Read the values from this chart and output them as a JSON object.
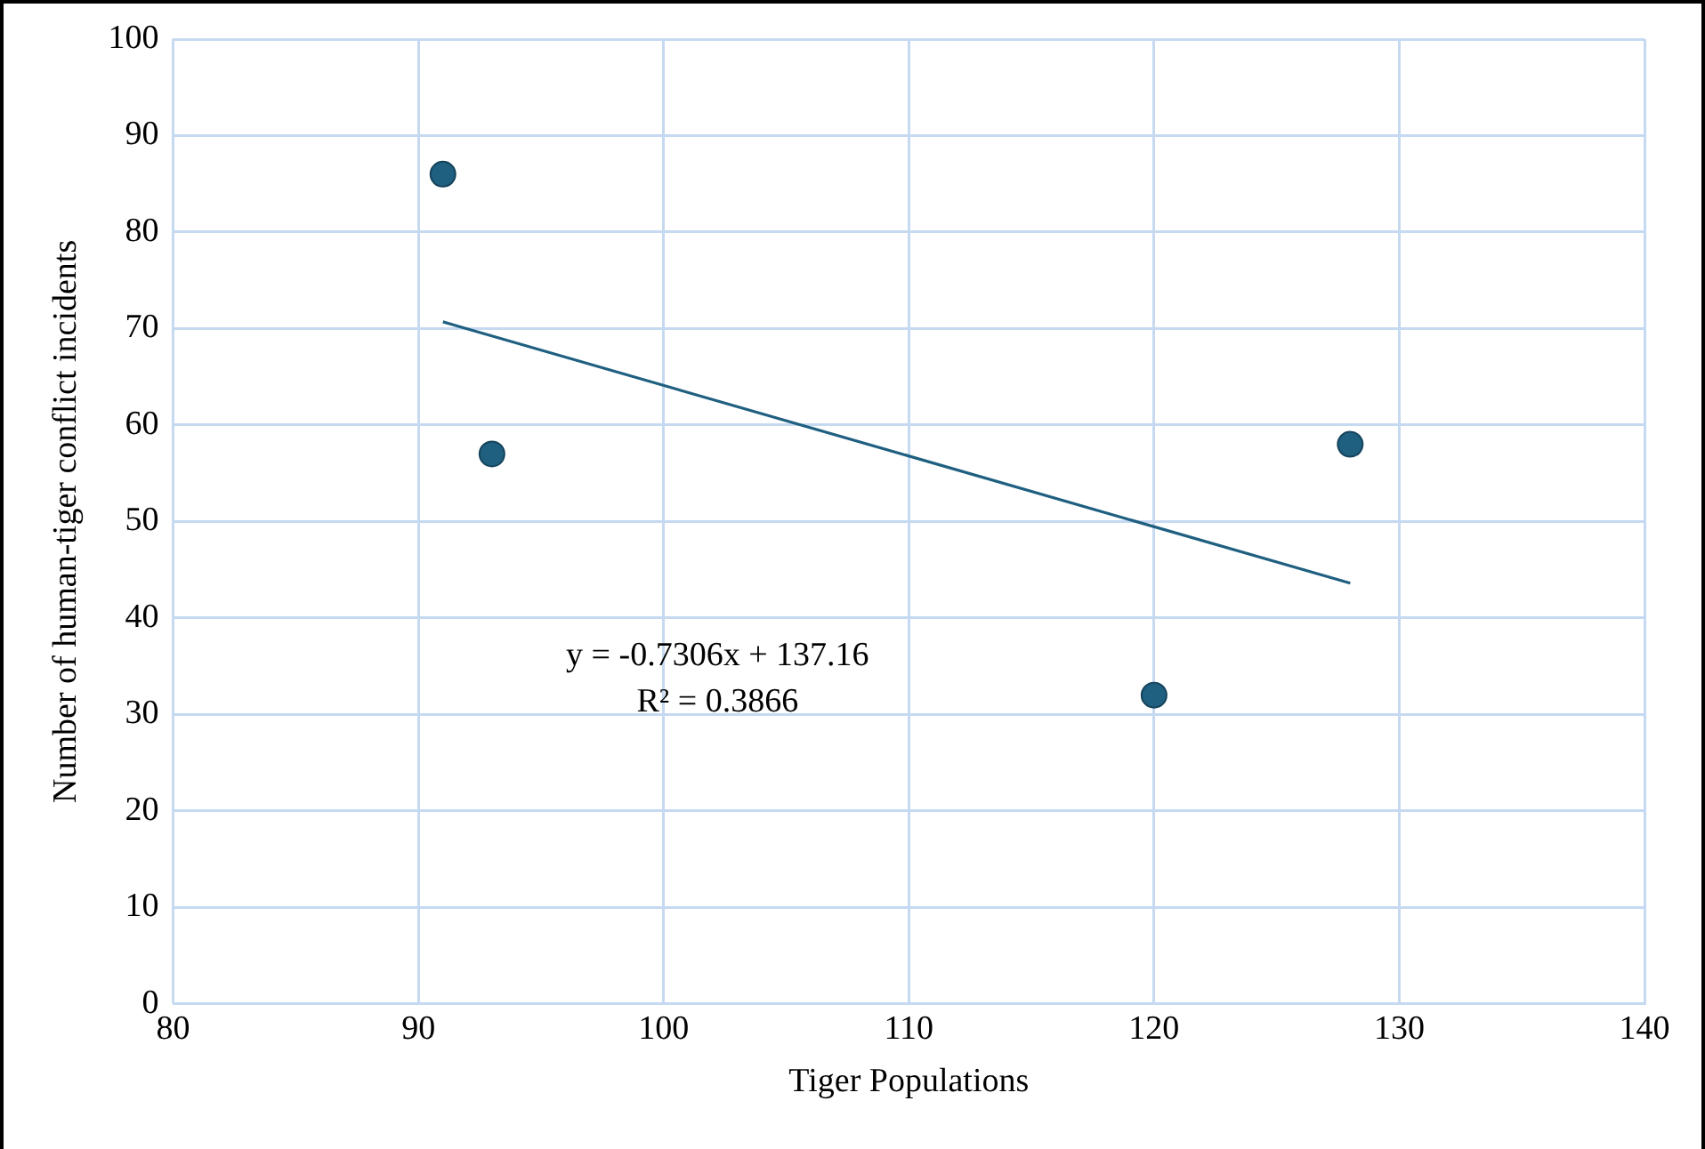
{
  "chart_data": {
    "type": "scatter",
    "xlabel": "Tiger Populations",
    "ylabel": "Number of human-tiger conflict incidents",
    "series": [
      {
        "color": "#1f5f80",
        "marker": "circle",
        "x": [
          91,
          93,
          120,
          128
        ],
        "values": [
          86,
          57,
          32,
          58
        ]
      },
      {
        "type": "line",
        "color": "#1f5f80",
        "marker": "none",
        "x": [
          91,
          128
        ],
        "values": [
          70.7,
          43.6
        ]
      }
    ],
    "xlim": [
      80,
      140
    ],
    "xticks": [
      80,
      90,
      100,
      110,
      120,
      130,
      140
    ],
    "ylim": [
      0,
      100
    ],
    "yticks": [
      0,
      10,
      20,
      30,
      40,
      50,
      60,
      70,
      80,
      90,
      100
    ],
    "grid": true,
    "legend": false,
    "line_style": "solid",
    "annotations": [
      "y = -0.7306x + 137.16",
      "R² = 0.3866"
    ]
  }
}
